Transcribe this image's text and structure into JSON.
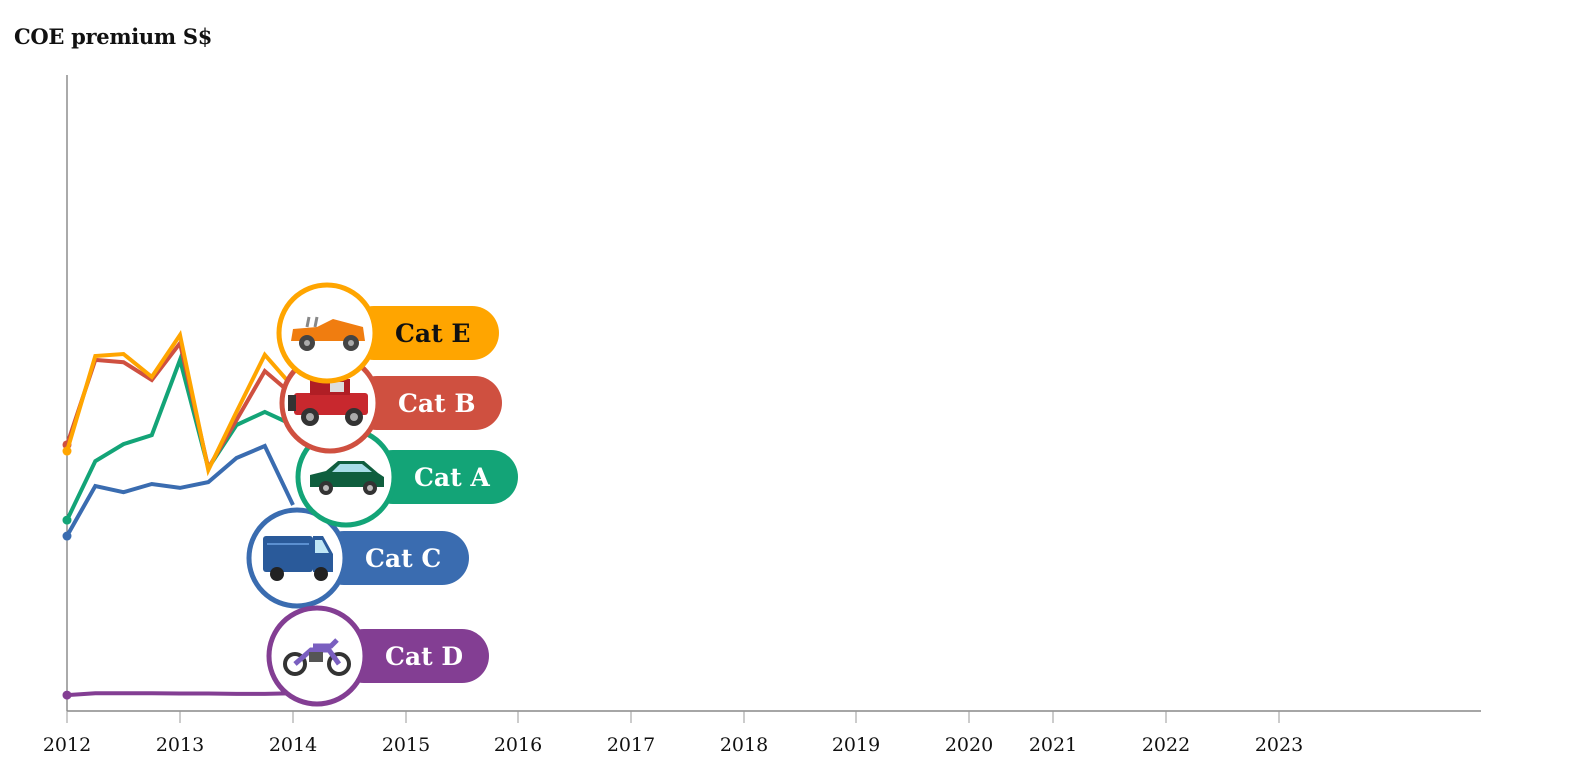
{
  "chart_data": {
    "type": "line",
    "title": "COE premium S$",
    "xlabel": "",
    "ylabel": "",
    "x_tick_labels": [
      "2012",
      "2013",
      "2014",
      "2015",
      "2016",
      "2017",
      "2018",
      "2019",
      "2020",
      "2021",
      "2022",
      "2023"
    ],
    "x": [
      "2012-Q1",
      "2012-Q2",
      "2012-Q3",
      "2012-Q4",
      "2013-Q1",
      "2013-Q2",
      "2013-Q3",
      "2013-Q4",
      "2014-Q1"
    ],
    "ylim": [
      0,
      100000
    ],
    "y_axis_labels_shown": false,
    "grid": false,
    "series": [
      {
        "name": "Cat E",
        "color": "#FFA500",
        "text_color": "#111111",
        "icon": "convertible-car-icon",
        "values": [
          67000,
          91500,
          92000,
          86100,
          96900,
          62100,
          77100,
          91800,
          83500
        ]
      },
      {
        "name": "Cat B",
        "color": "#CF5040",
        "text_color": "#FFFFFF",
        "icon": "jeep-icon",
        "values": [
          68600,
          90500,
          89900,
          85300,
          94800,
          62600,
          75000,
          87600,
          81400
        ]
      },
      {
        "name": "Cat A",
        "color": "#13A477",
        "text_color": "#FFFFFF",
        "icon": "hatchback-car-icon",
        "values": [
          49200,
          64400,
          68800,
          71100,
          90500,
          62600,
          73700,
          77100,
          73700
        ]
      },
      {
        "name": "Cat C",
        "color": "#3A6CB0",
        "text_color": "#FFFFFF",
        "icon": "van-icon",
        "values": [
          45100,
          58000,
          56400,
          58500,
          57500,
          59000,
          65200,
          68300,
          53100
        ]
      },
      {
        "name": "Cat D",
        "color": "#833E93",
        "text_color": "#FFFFFF",
        "icon": "motorcycle-icon",
        "values": [
          4100,
          4600,
          4600,
          4600,
          4500,
          4500,
          4400,
          4400,
          4600
        ]
      }
    ]
  }
}
